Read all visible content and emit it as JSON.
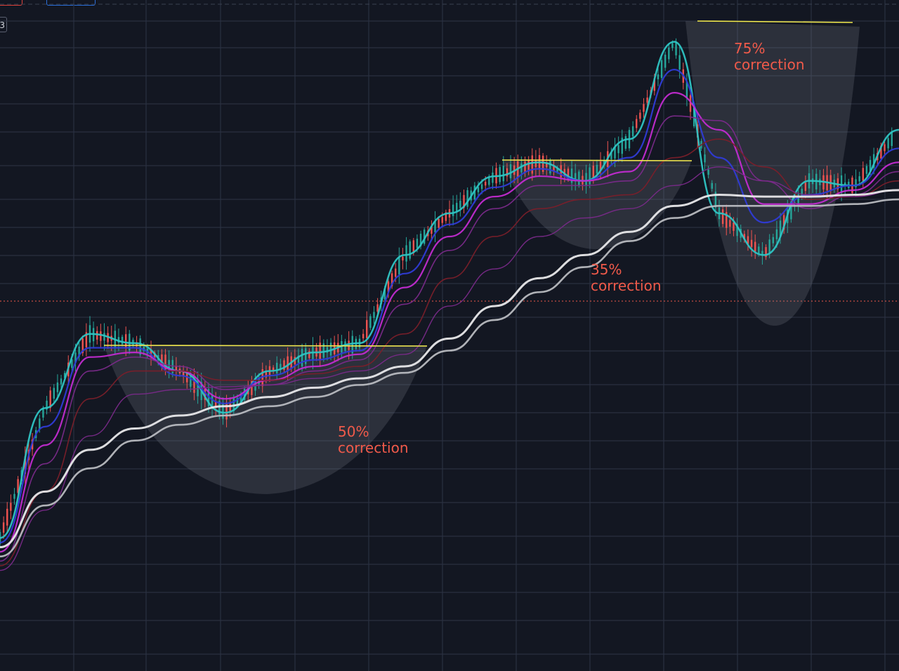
{
  "colors": {
    "background": "#131722",
    "grid": "#2a3040",
    "candle_up": "#26a69a",
    "candle_down": "#ef5350",
    "ema_fast": "#2ec4c4",
    "ema_blue": "#2f3bd6",
    "ema_magenta": "#c22bd1",
    "ema_purple": "#7a2a8a",
    "ema_darkred": "#7a1f2a",
    "sma_white": "#e8e8ea",
    "sma_gray": "#b8bac0",
    "highlight_line": "#f2e94e",
    "annotation": "#f05a4a",
    "price_line": "#f05a4a",
    "cup_fill": "rgba(120,124,135,0.25)"
  },
  "header": {
    "badge_left_text": "",
    "badge_right_text": "",
    "side_tab_text": "3"
  },
  "chart_data": {
    "type": "line",
    "title": "",
    "xlabel": "",
    "ylabel": "",
    "grid": true,
    "x": [
      0,
      10,
      20,
      30,
      40,
      50,
      60,
      70,
      80,
      90,
      100,
      110,
      120,
      130,
      140,
      150,
      160,
      170,
      180,
      190,
      200
    ],
    "series": [
      {
        "values": [
          120,
          260,
          340,
          330,
          300,
          255,
          300,
          320,
          330,
          425,
          470,
          510,
          525,
          505,
          550,
          655,
          470,
          425,
          505,
          500,
          560
        ]
      },
      {
        "values": [
          115,
          240,
          325,
          325,
          295,
          265,
          295,
          312,
          322,
          405,
          458,
          498,
          518,
          505,
          530,
          625,
          530,
          460,
          490,
          500,
          540
        ]
      },
      {
        "values": [
          105,
          220,
          315,
          320,
          300,
          270,
          290,
          305,
          318,
          390,
          445,
          488,
          510,
          505,
          515,
          600,
          560,
          480,
          480,
          495,
          525
        ]
      },
      {
        "values": [
          95,
          200,
          300,
          315,
          305,
          280,
          285,
          300,
          312,
          372,
          430,
          475,
          500,
          500,
          505,
          575,
          570,
          505,
          475,
          490,
          515
        ]
      },
      {
        "values": [
          90,
          170,
          270,
          300,
          300,
          290,
          290,
          297,
          305,
          340,
          400,
          445,
          475,
          485,
          490,
          530,
          550,
          520,
          485,
          488,
          505
        ]
      },
      {
        "values": [
          85,
          150,
          230,
          275,
          280,
          283,
          285,
          292,
          300,
          318,
          370,
          410,
          445,
          465,
          475,
          500,
          520,
          505,
          490,
          488,
          495
        ]
      },
      {
        "values": [
          110,
          170,
          215,
          238,
          252,
          262,
          272,
          282,
          292,
          305,
          335,
          370,
          400,
          425,
          450,
          478,
          490,
          488,
          488,
          490,
          495
        ]
      },
      {
        "values": [
          100,
          155,
          195,
          225,
          242,
          252,
          262,
          272,
          285,
          298,
          322,
          355,
          385,
          412,
          440,
          465,
          478,
          478,
          478,
          480,
          485
        ]
      }
    ],
    "annotations": [
      {
        "label_top": "50%",
        "label_bottom": "correction"
      },
      {
        "label_top": "35%",
        "label_bottom": "correction"
      },
      {
        "label_top": "75%",
        "label_bottom": "correction"
      }
    ]
  }
}
